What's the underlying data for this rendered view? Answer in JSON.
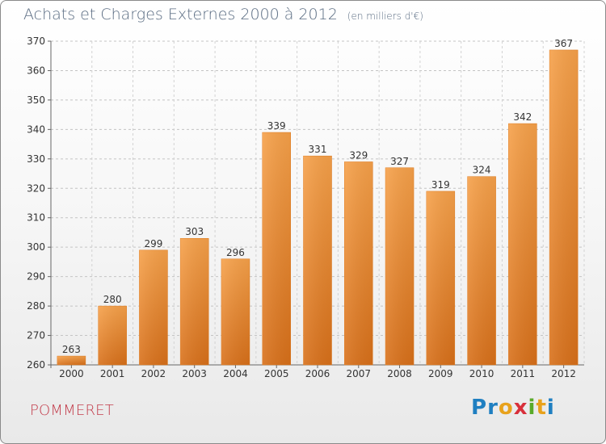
{
  "header": {
    "title": "Achats et Charges Externes 2000 à 2012",
    "unit": "(en milliers d'€)"
  },
  "footer": {
    "commune": "POMMERET",
    "logo_letters": [
      "P",
      "r",
      "o",
      "x",
      "i",
      "t",
      "i"
    ],
    "logo_colors": [
      "#1f7fc1",
      "#1f7fc1",
      "#e8a21c",
      "#d8303b",
      "#5aaa2a",
      "#e8a21c",
      "#1f7fc1"
    ]
  },
  "chart_data": {
    "type": "bar",
    "title": "Achats et Charges Externes 2000 à 2012",
    "subtitle": "(en milliers d'€)",
    "categories": [
      "2000",
      "2001",
      "2002",
      "2003",
      "2004",
      "2005",
      "2006",
      "2007",
      "2008",
      "2009",
      "2010",
      "2011",
      "2012"
    ],
    "values": [
      263,
      280,
      299,
      303,
      296,
      339,
      331,
      329,
      327,
      319,
      324,
      342,
      367
    ],
    "ylim": [
      260,
      370
    ],
    "yticks": [
      260,
      270,
      280,
      290,
      300,
      310,
      320,
      330,
      340,
      350,
      360,
      370
    ],
    "grid": true,
    "bar_color": "#f08a24",
    "data_labels": true
  }
}
